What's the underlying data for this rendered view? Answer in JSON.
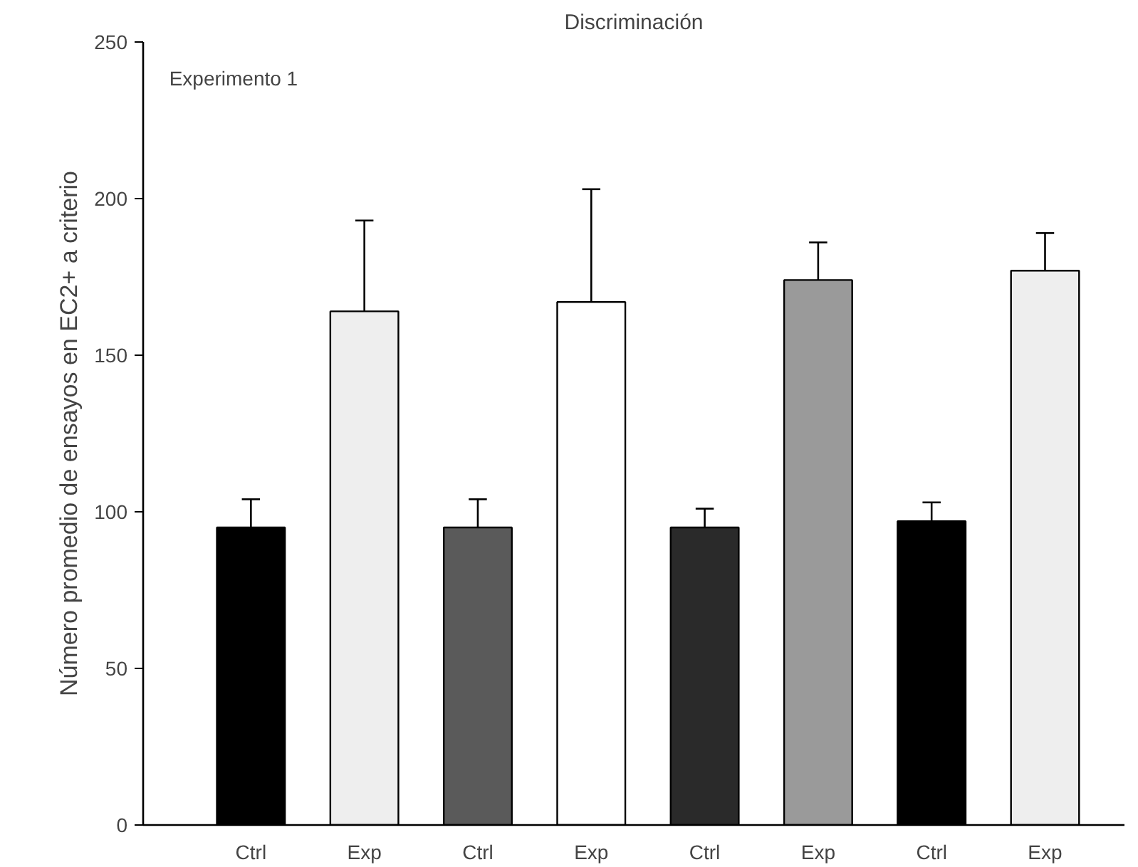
{
  "chart_data": {
    "type": "bar",
    "title": "Discriminación",
    "ylabel": "Número promedio de ensayos en EC2+ a criterio",
    "categories": [
      "Ctrl",
      "Exp",
      "Ctrl",
      "Exp",
      "Ctrl",
      "Exp",
      "Ctrl",
      "Exp"
    ],
    "values": [
      95,
      164,
      95,
      167,
      95,
      174,
      97,
      177
    ],
    "colors": [
      "#000000",
      "#eeeeee",
      "#5a5a5a",
      "#ffffff",
      "#2a2a2a",
      "#9a9a9a",
      "#000000",
      "#eeeeee"
    ],
    "errors": [
      [
        95,
        104
      ],
      [
        164,
        193
      ],
      [
        95,
        104
      ],
      [
        167,
        203
      ],
      [
        95,
        101
      ],
      [
        174,
        186
      ],
      [
        97,
        103
      ],
      [
        177,
        189
      ]
    ],
    "ylim": [
      0,
      250
    ],
    "yticks": [
      0,
      50,
      100,
      150,
      200,
      250
    ],
    "grid": false,
    "annotations": [
      "Experimento 1"
    ]
  }
}
